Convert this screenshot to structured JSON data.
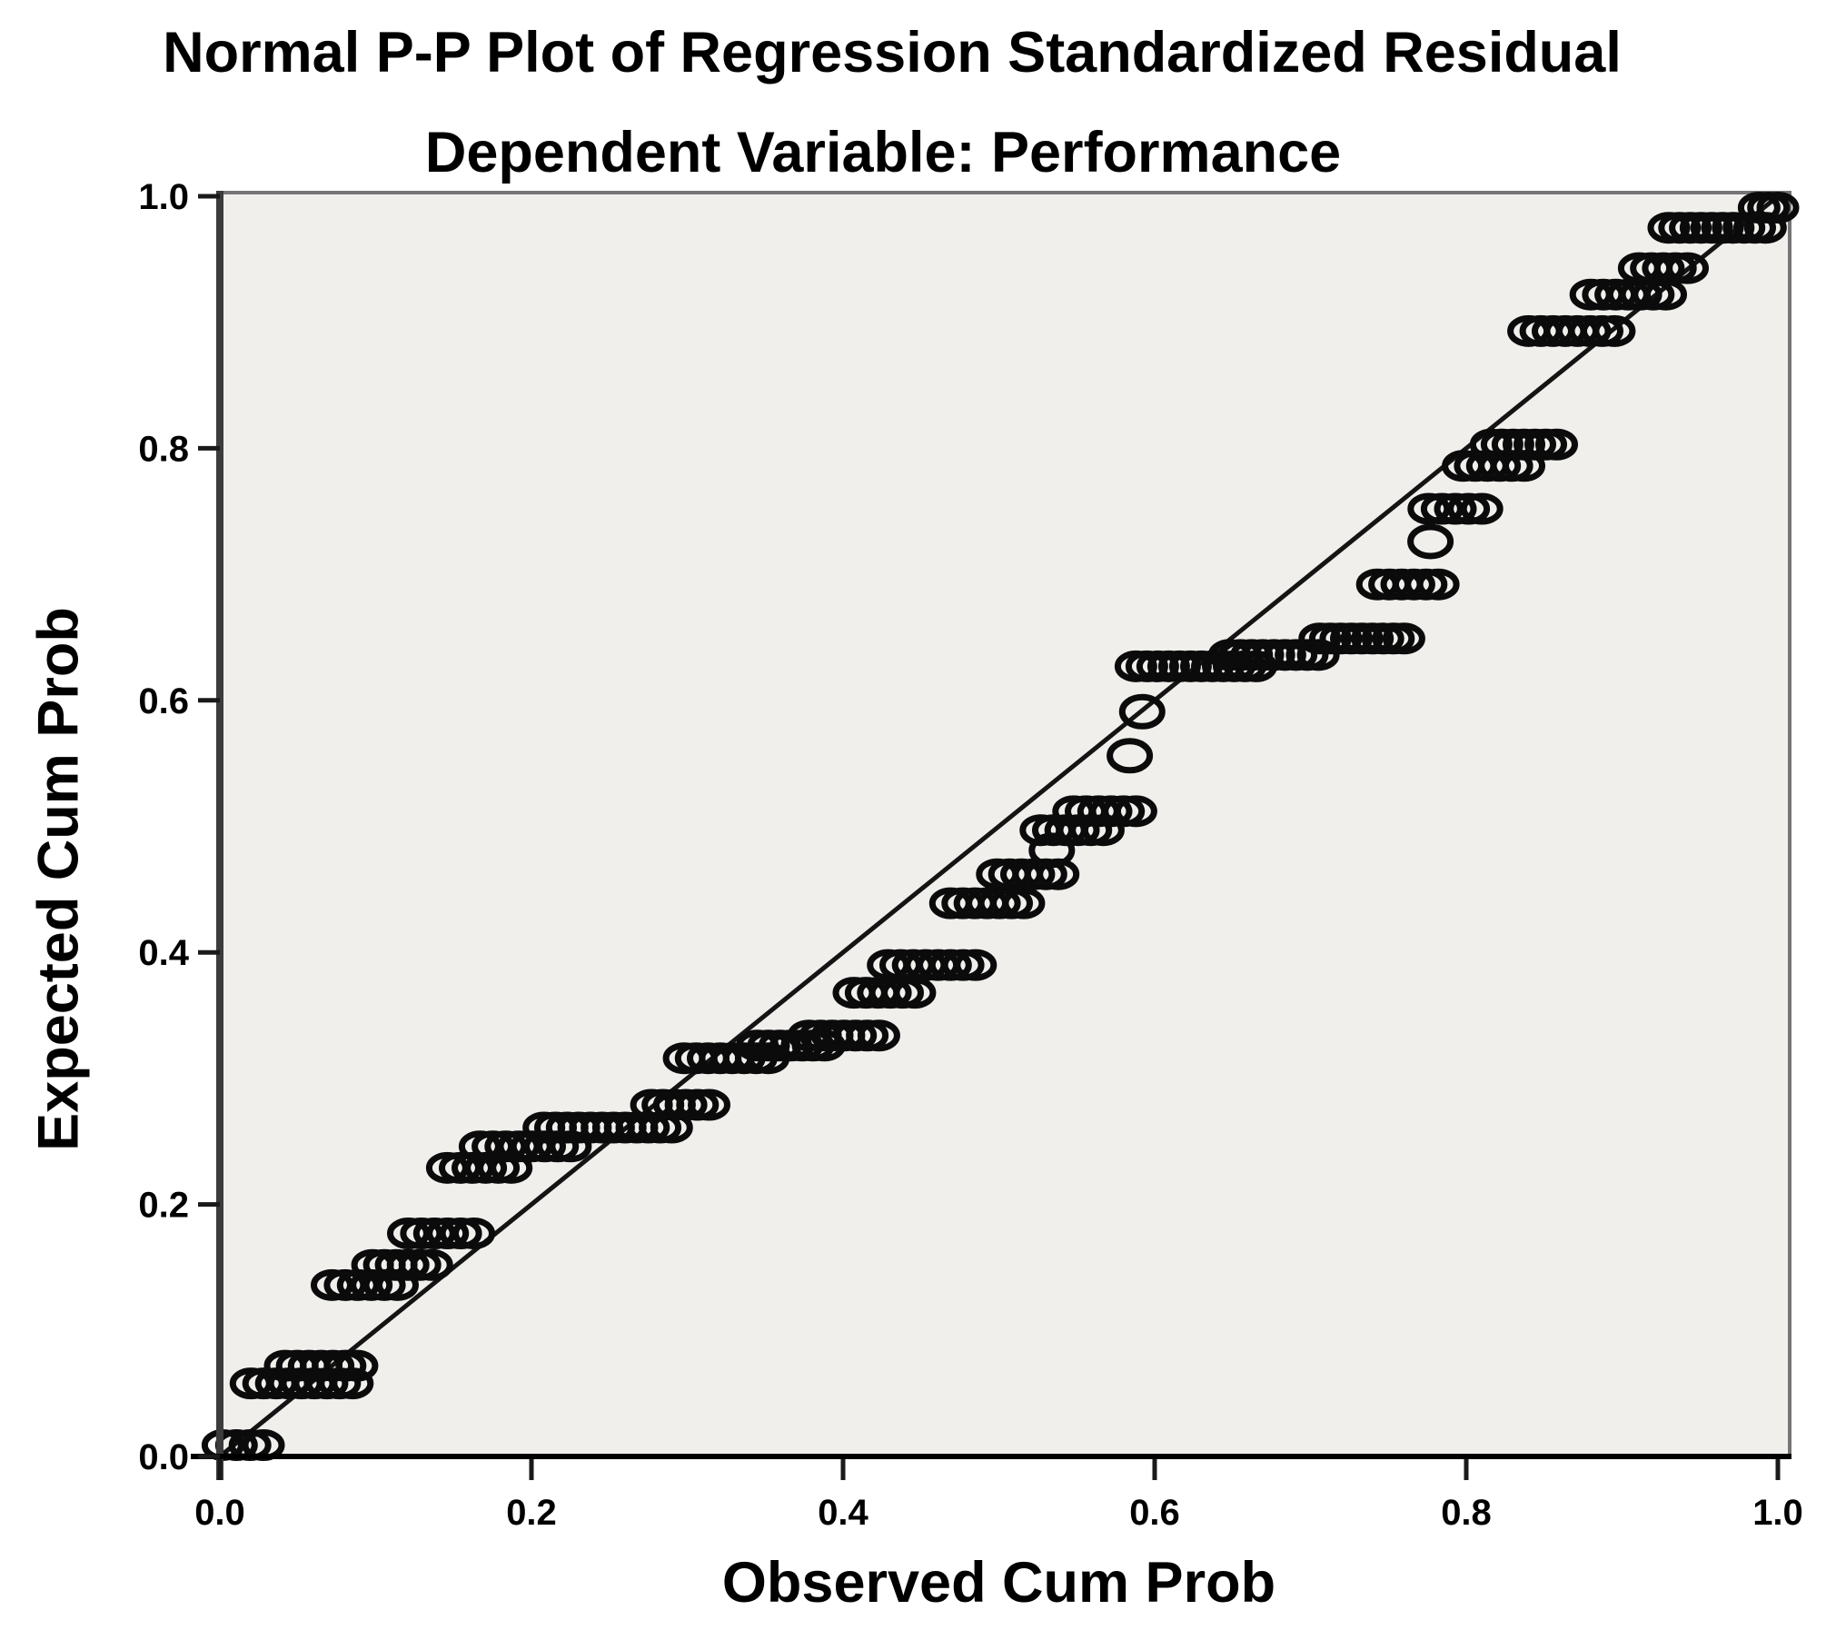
{
  "figure": {
    "title": "Normal P-P Plot of Regression Standardized Residual",
    "subtitle": "Dependent Variable: Performance"
  },
  "axes": {
    "x_label": "Observed Cum Prob",
    "y_label": "Expected Cum Prob"
  },
  "colors": {
    "plot_background": "#f0efec",
    "frame": "#757575",
    "axis_bar": "#3c3c3c",
    "axis_line": "#000000",
    "tick": "#1a1a1a",
    "reference_line": "#141414",
    "point_stroke": "#0b0b0b",
    "text": "#000000"
  },
  "chart_data": {
    "type": "scatter",
    "title": "Normal P-P Plot of Regression Standardized Residual",
    "subtitle": "Dependent Variable: Performance",
    "xlabel": "Observed Cum Prob",
    "ylabel": "Expected Cum Prob",
    "xlim": [
      0.0,
      1.0
    ],
    "ylim": [
      0.0,
      1.0
    ],
    "grid": false,
    "legend": false,
    "marker": "open-circle",
    "x_ticks": [
      {
        "value": 0.0,
        "label": "0.0"
      },
      {
        "value": 0.2,
        "label": "0.2"
      },
      {
        "value": 0.4,
        "label": "0.4"
      },
      {
        "value": 0.6,
        "label": "0.6"
      },
      {
        "value": 0.8,
        "label": "0.8"
      },
      {
        "value": 1.0,
        "label": "1.0"
      }
    ],
    "y_ticks": [
      {
        "value": 0.0,
        "label": "0.0"
      },
      {
        "value": 0.2,
        "label": "0.2"
      },
      {
        "value": 0.4,
        "label": "0.4"
      },
      {
        "value": 0.6,
        "label": "0.6"
      },
      {
        "value": 0.8,
        "label": "0.8"
      },
      {
        "value": 1.0,
        "label": "1.0"
      }
    ],
    "reference_line": {
      "x": [
        0.0,
        1.0
      ],
      "y": [
        0.0,
        1.0
      ]
    },
    "point_runs": [
      {
        "y": 0.009,
        "x_start": 0.002,
        "x_end": 0.028,
        "n": 4
      },
      {
        "y": 0.058,
        "x_start": 0.02,
        "x_end": 0.085,
        "n": 9
      },
      {
        "y": 0.072,
        "x_start": 0.042,
        "x_end": 0.088,
        "n": 7
      },
      {
        "y": 0.136,
        "x_start": 0.072,
        "x_end": 0.114,
        "n": 6
      },
      {
        "y": 0.152,
        "x_start": 0.098,
        "x_end": 0.136,
        "n": 6
      },
      {
        "y": 0.177,
        "x_start": 0.121,
        "x_end": 0.163,
        "n": 6
      },
      {
        "y": 0.229,
        "x_start": 0.146,
        "x_end": 0.187,
        "n": 6
      },
      {
        "y": 0.246,
        "x_start": 0.167,
        "x_end": 0.225,
        "n": 8
      },
      {
        "y": 0.261,
        "x_start": 0.208,
        "x_end": 0.29,
        "n": 12
      },
      {
        "y": 0.279,
        "x_start": 0.277,
        "x_end": 0.314,
        "n": 6
      },
      {
        "y": 0.316,
        "x_start": 0.298,
        "x_end": 0.352,
        "n": 8
      },
      {
        "y": 0.326,
        "x_start": 0.345,
        "x_end": 0.388,
        "n": 7
      },
      {
        "y": 0.334,
        "x_start": 0.378,
        "x_end": 0.423,
        "n": 7
      },
      {
        "y": 0.368,
        "x_start": 0.407,
        "x_end": 0.446,
        "n": 6
      },
      {
        "y": 0.39,
        "x_start": 0.429,
        "x_end": 0.485,
        "n": 8
      },
      {
        "y": 0.439,
        "x_start": 0.469,
        "x_end": 0.516,
        "n": 7
      },
      {
        "y": 0.462,
        "x_start": 0.499,
        "x_end": 0.538,
        "n": 6
      },
      {
        "y": 0.497,
        "x_start": 0.527,
        "x_end": 0.567,
        "n": 6
      },
      {
        "y": 0.512,
        "x_start": 0.548,
        "x_end": 0.588,
        "n": 6
      },
      {
        "y": 0.627,
        "x_start": 0.588,
        "x_end": 0.665,
        "n": 12
      },
      {
        "y": 0.636,
        "x_start": 0.648,
        "x_end": 0.705,
        "n": 9
      },
      {
        "y": 0.649,
        "x_start": 0.706,
        "x_end": 0.76,
        "n": 9
      },
      {
        "y": 0.692,
        "x_start": 0.743,
        "x_end": 0.782,
        "n": 6
      },
      {
        "y": 0.752,
        "x_start": 0.776,
        "x_end": 0.81,
        "n": 5
      },
      {
        "y": 0.786,
        "x_start": 0.798,
        "x_end": 0.837,
        "n": 6
      },
      {
        "y": 0.803,
        "x_start": 0.816,
        "x_end": 0.858,
        "n": 7
      },
      {
        "y": 0.893,
        "x_start": 0.84,
        "x_end": 0.895,
        "n": 8
      },
      {
        "y": 0.922,
        "x_start": 0.88,
        "x_end": 0.928,
        "n": 7
      },
      {
        "y": 0.943,
        "x_start": 0.911,
        "x_end": 0.942,
        "n": 5
      },
      {
        "y": 0.975,
        "x_start": 0.93,
        "x_end": 0.992,
        "n": 10
      },
      {
        "y": 0.991,
        "x_start": 0.988,
        "x_end": 1.0,
        "n": 3
      }
    ],
    "single_points": [
      {
        "x": 0.534,
        "y": 0.481
      },
      {
        "x": 0.584,
        "y": 0.556
      },
      {
        "x": 0.592,
        "y": 0.591
      },
      {
        "x": 0.777,
        "y": 0.726
      }
    ]
  }
}
